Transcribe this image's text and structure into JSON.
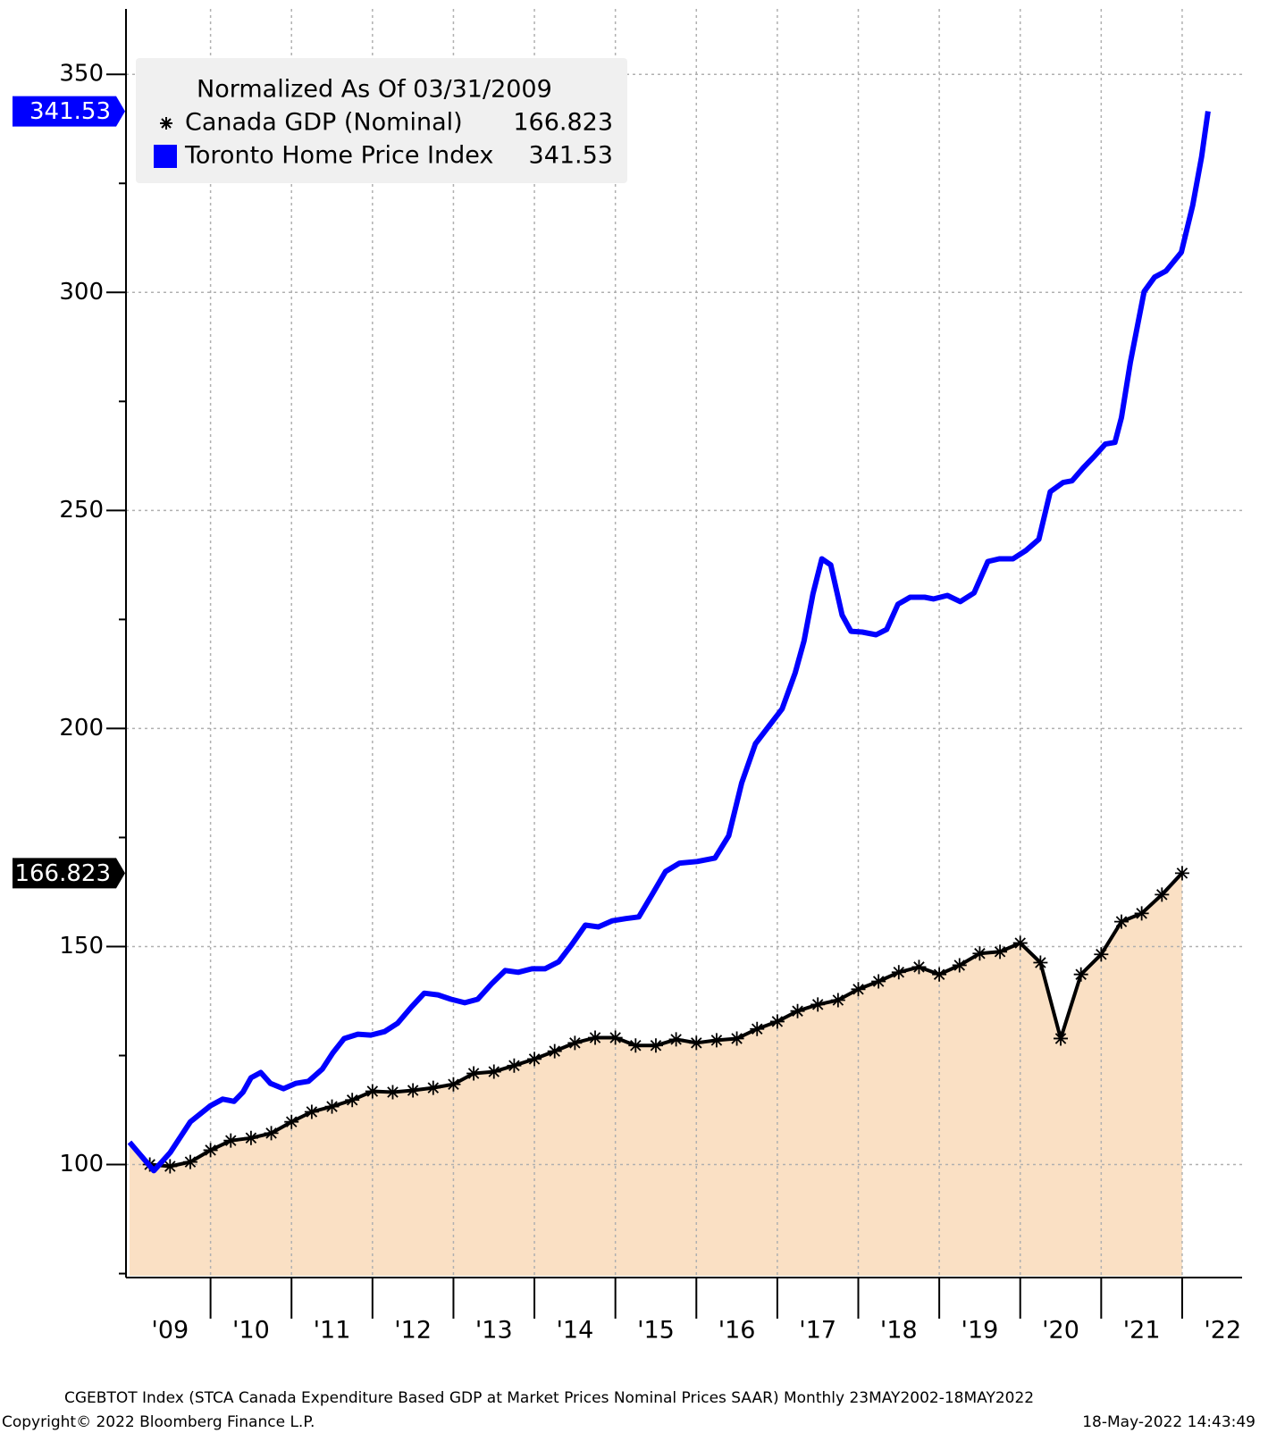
{
  "chart_data": {
    "type": "line",
    "legend_title": "Normalized As Of 03/31/2009",
    "xlim": [
      2009,
      2022.74
    ],
    "xgrid": [
      2010,
      2011,
      2012,
      2013,
      2014,
      2015,
      2016,
      2017,
      2018,
      2019,
      2020,
      2021,
      2022
    ],
    "xticks": [
      {
        "value": 2009.5,
        "label": "'09"
      },
      {
        "value": 2010.5,
        "label": "'10"
      },
      {
        "value": 2011.5,
        "label": "'11"
      },
      {
        "value": 2012.5,
        "label": "'12"
      },
      {
        "value": 2013.5,
        "label": "'13"
      },
      {
        "value": 2014.5,
        "label": "'14"
      },
      {
        "value": 2015.5,
        "label": "'15"
      },
      {
        "value": 2016.5,
        "label": "'16"
      },
      {
        "value": 2017.5,
        "label": "'17"
      },
      {
        "value": 2018.5,
        "label": "'18"
      },
      {
        "value": 2019.5,
        "label": "'19"
      },
      {
        "value": 2020.5,
        "label": "'20"
      },
      {
        "value": 2021.5,
        "label": "'21"
      },
      {
        "value": 2022.5,
        "label": "'22"
      }
    ],
    "ylim": [
      74.5,
      365
    ],
    "yticks": [
      100,
      150,
      200,
      250,
      300,
      350
    ],
    "yminorticks": [
      75,
      125,
      175,
      225,
      275,
      325
    ],
    "grid": true,
    "series": [
      {
        "name": "Canada GDP (Nominal)",
        "color": "#000000",
        "fill": "#fae0c4",
        "marker": "asterisk",
        "last_label": "166.823",
        "x": [
          2009,
          2009.25,
          2009.5,
          2009.75,
          2010,
          2010.25,
          2010.5,
          2010.75,
          2011,
          2011.25,
          2011.5,
          2011.75,
          2012,
          2012.25,
          2012.5,
          2012.75,
          2013,
          2013.25,
          2013.5,
          2013.75,
          2014,
          2014.25,
          2014.5,
          2014.75,
          2015,
          2015.25,
          2015.5,
          2015.75,
          2016,
          2016.25,
          2016.5,
          2016.75,
          2017,
          2017.25,
          2017.5,
          2017.75,
          2018,
          2018.25,
          2018.5,
          2018.75,
          2019,
          2019.25,
          2019.5,
          2019.75,
          2020,
          2020.25,
          2020.5,
          2020.75,
          2021,
          2021.25,
          2021.5,
          2021.75,
          2022
        ],
        "values": [
          105.1,
          100,
          99.6,
          100.6,
          103.3,
          105.5,
          106.1,
          107.2,
          109.8,
          112.1,
          113.3,
          114.8,
          116.8,
          116.6,
          117,
          117.6,
          118.4,
          120.9,
          121.3,
          122.7,
          124.2,
          126,
          127.9,
          129.1,
          129.1,
          127.3,
          127.3,
          128.7,
          127.9,
          128.5,
          128.9,
          131.1,
          132.8,
          135.2,
          136.7,
          137.7,
          140.2,
          142,
          144.1,
          145.3,
          143.6,
          145.7,
          148.4,
          148.8,
          150.8,
          146.3,
          128.9,
          143.6,
          148.2,
          155.7,
          157.6,
          161.9,
          166.823
        ]
      },
      {
        "name": "Toronto Home Price Index",
        "color": "#0000ff",
        "last_label": "341.53",
        "x": [
          2009,
          2009.3,
          2009.5,
          2009.75,
          2010,
          2010.15,
          2010.29,
          2010.4,
          2010.5,
          2010.62,
          2010.74,
          2010.9,
          2011.05,
          2011.21,
          2011.38,
          2011.51,
          2011.65,
          2011.82,
          2011.98,
          2012.15,
          2012.31,
          2012.48,
          2012.64,
          2012.81,
          2012.97,
          2013.14,
          2013.3,
          2013.47,
          2013.64,
          2013.8,
          2013.97,
          2014.13,
          2014.3,
          2014.46,
          2014.63,
          2014.79,
          2014.96,
          2015.13,
          2015.29,
          2015.46,
          2015.62,
          2015.79,
          2016.01,
          2016.23,
          2016.4,
          2016.56,
          2016.73,
          2016.89,
          2017.06,
          2017.22,
          2017.33,
          2017.44,
          2017.55,
          2017.66,
          2017.8,
          2017.91,
          2018.05,
          2018.22,
          2018.35,
          2018.49,
          2018.64,
          2018.82,
          2018.93,
          2019.1,
          2019.26,
          2019.43,
          2019.6,
          2019.74,
          2019.91,
          2020.07,
          2020.23,
          2020.37,
          2020.53,
          2020.64,
          2020.78,
          2020.92,
          2021.05,
          2021.17,
          2021.25,
          2021.36,
          2021.53,
          2021.66,
          2021.8,
          2021.99,
          2022.13,
          2022.24,
          2022.32
        ],
        "values": [
          105.1,
          98.6,
          102.7,
          109.8,
          113.5,
          115,
          114.5,
          116.6,
          119.9,
          121.1,
          118.6,
          117.4,
          118.6,
          119.1,
          121.9,
          125.6,
          128.9,
          129.9,
          129.7,
          130.5,
          132.4,
          136.1,
          139.3,
          138.9,
          137.9,
          137.1,
          137.9,
          141.4,
          144.5,
          144.1,
          144.9,
          144.9,
          146.5,
          150.4,
          154.9,
          154.5,
          155.9,
          156.4,
          156.8,
          162.1,
          167.2,
          169.1,
          169.5,
          170.3,
          175.4,
          187.5,
          196.5,
          200.4,
          204.5,
          212.7,
          220.1,
          230.9,
          238.9,
          237.5,
          226,
          222.3,
          222.1,
          221.5,
          222.7,
          228.5,
          230.1,
          230.1,
          229.7,
          230.5,
          229.1,
          231.1,
          238.3,
          238.9,
          238.9,
          240.8,
          243.4,
          254.3,
          256.4,
          256.8,
          259.8,
          262.5,
          265.2,
          265.6,
          271.3,
          284,
          300.2,
          303.5,
          304.9,
          309.2,
          319.9,
          331.1,
          341.53
        ]
      }
    ],
    "footer": "CGEBTOT Index (STCA Canada Expenditure Based GDP at Market Prices Nominal Prices SAAR)  Monthly 23MAY2002-18MAY2022",
    "copyright": "Copyright© 2022 Bloomberg Finance L.P.",
    "timestamp": "18-May-2022 14:43:49"
  }
}
